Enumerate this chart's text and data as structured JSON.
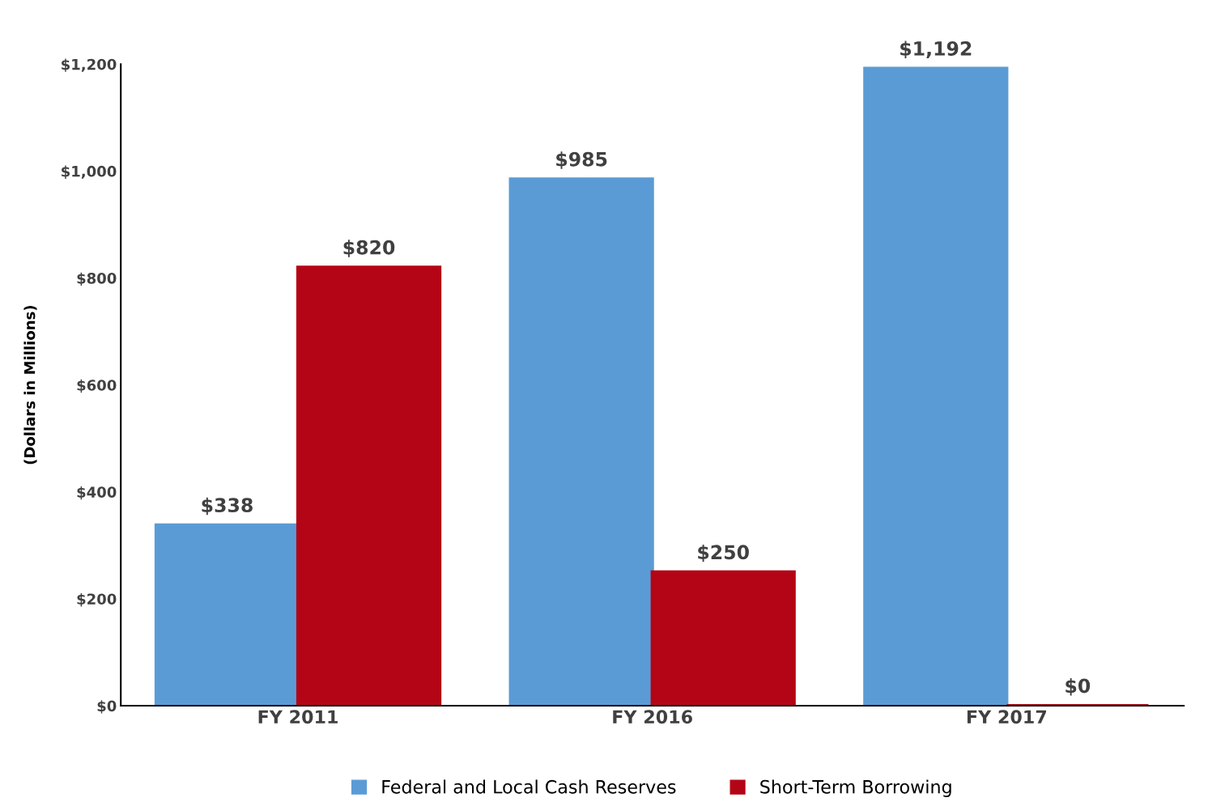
{
  "chart_data": {
    "type": "bar",
    "ylabel": "(Dollars in Millions)",
    "categories": [
      "FY 2011",
      "FY 2016",
      "FY 2017"
    ],
    "series": [
      {
        "name": "Federal and Local Cash Reserves",
        "color": "#5b9bd5",
        "values": [
          338,
          985,
          1192
        ],
        "value_labels": [
          "$338",
          "$985",
          "$1,192"
        ]
      },
      {
        "name": "Short-Term Borrowing",
        "color": "#b30515",
        "values": [
          820,
          250,
          0
        ],
        "value_labels": [
          "$820",
          "$250",
          "$0"
        ]
      }
    ],
    "ylim": [
      0,
      1200
    ],
    "yticks": [
      {
        "value": 0,
        "label": "$0"
      },
      {
        "value": 200,
        "label": "$200"
      },
      {
        "value": 400,
        "label": "$400"
      },
      {
        "value": 600,
        "label": "$600"
      },
      {
        "value": 800,
        "label": "$800"
      },
      {
        "value": 1000,
        "label": "$1,000"
      },
      {
        "value": 1200,
        "label": "$1,200"
      }
    ],
    "grid": false,
    "legend": "bottom"
  }
}
